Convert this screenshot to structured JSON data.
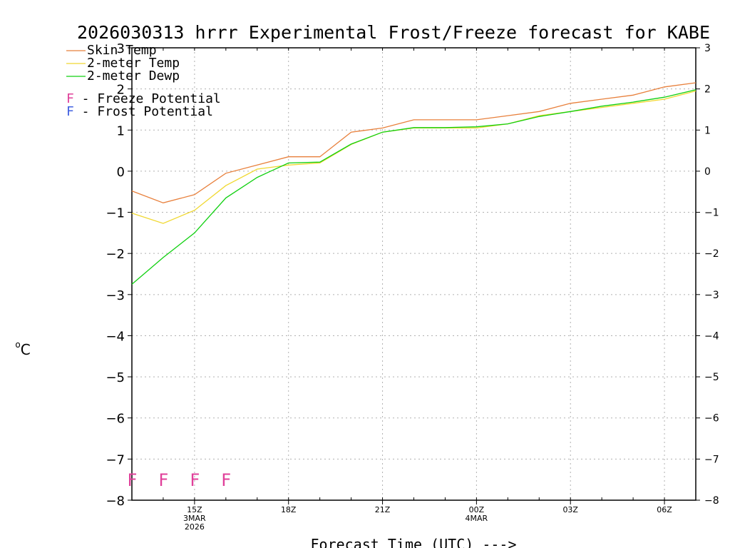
{
  "chart_data": {
    "type": "line",
    "title": "2026030313 hrrr Experimental Frost/Freeze forecast for KABE",
    "xlabel": "Forecast Time (UTC) --->",
    "ylabel": "°C",
    "ylabel_unit": "o",
    "ylabel_letter": "C",
    "ylim": [
      -8,
      3
    ],
    "yticks": [
      3,
      2,
      1,
      0,
      -1,
      -2,
      -3,
      -4,
      -5,
      -6,
      -7,
      -8
    ],
    "ytick_labels": [
      "3",
      "2",
      "1",
      "0",
      "−1",
      "−2",
      "−3",
      "−4",
      "−5",
      "−6",
      "−7",
      "−8"
    ],
    "xlim": [
      13,
      31
    ],
    "x": [
      13,
      14,
      15,
      16,
      17,
      18,
      19,
      20,
      21,
      22,
      23,
      24,
      25,
      26,
      27,
      28,
      29,
      30,
      31
    ],
    "xticks": [
      {
        "x": 15,
        "lines": [
          "15Z",
          "3MAR",
          "2026"
        ]
      },
      {
        "x": 18,
        "lines": [
          "18Z"
        ]
      },
      {
        "x": 21,
        "lines": [
          "21Z"
        ]
      },
      {
        "x": 24,
        "lines": [
          "00Z",
          "4MAR"
        ]
      },
      {
        "x": 27,
        "lines": [
          "03Z"
        ]
      },
      {
        "x": 30,
        "lines": [
          "06Z"
        ]
      }
    ],
    "grid": true,
    "series": [
      {
        "name": "Skin Temp",
        "color": "#e8803c",
        "values": [
          -0.48,
          -0.77,
          -0.57,
          -0.05,
          0.15,
          0.35,
          0.35,
          0.95,
          1.05,
          1.25,
          1.25,
          1.25,
          1.35,
          1.45,
          1.65,
          1.75,
          1.85,
          2.05,
          2.15
        ]
      },
      {
        "name": "2-meter Temp",
        "color": "#f0d830",
        "values": [
          -1.02,
          -1.27,
          -0.95,
          -0.35,
          0.05,
          0.15,
          0.2,
          0.65,
          0.95,
          1.05,
          1.05,
          1.05,
          1.15,
          1.35,
          1.45,
          1.55,
          1.65,
          1.75,
          1.95
        ]
      },
      {
        "name": "2-meter Dewp",
        "color": "#10d010",
        "values": [
          -2.75,
          -2.1,
          -1.5,
          -0.65,
          -0.15,
          0.2,
          0.22,
          0.66,
          0.95,
          1.06,
          1.06,
          1.08,
          1.15,
          1.33,
          1.45,
          1.58,
          1.68,
          1.8,
          1.98
        ]
      }
    ],
    "potential_legend": [
      {
        "letter": "F",
        "label": " - Freeze Potential",
        "color": "#e0409a"
      },
      {
        "letter": "F",
        "label": " - Frost Potential",
        "color": "#4060e0"
      }
    ],
    "freeze_marks": {
      "letter": "F",
      "color": "#e0409a",
      "y": -7.5,
      "x": [
        13,
        14,
        15,
        16
      ]
    }
  }
}
